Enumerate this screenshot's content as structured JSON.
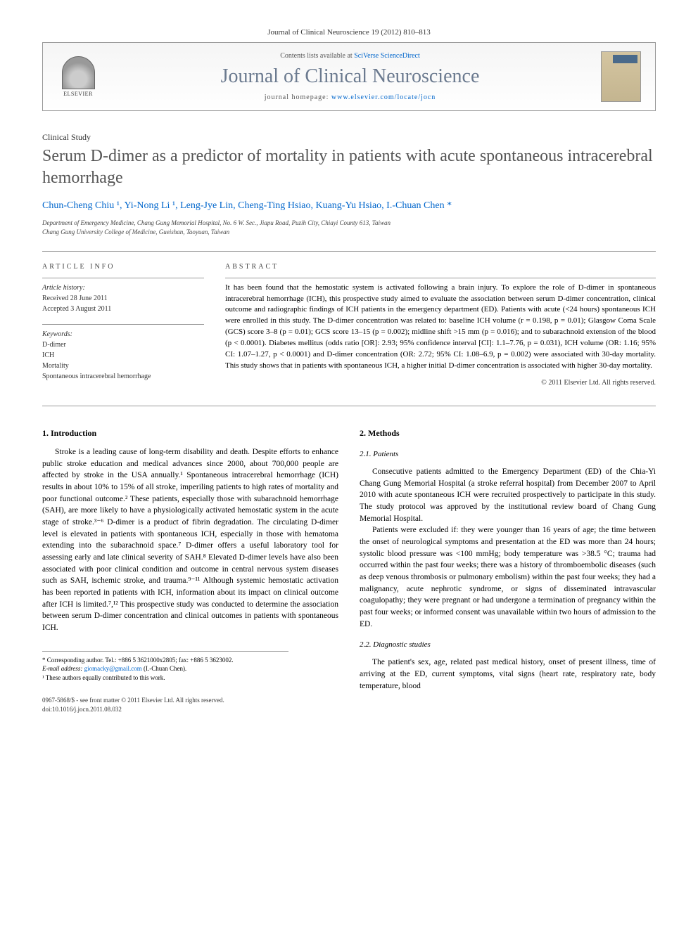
{
  "journal_ref": "Journal of Clinical Neuroscience 19 (2012) 810–813",
  "header": {
    "contents_text": "Contents lists available at ",
    "sciverse": "SciVerse ScienceDirect",
    "journal_title": "Journal of Clinical Neuroscience",
    "homepage_label": "journal homepage: ",
    "homepage_url": "www.elsevier.com/locate/jocn",
    "elsevier": "ELSEVIER"
  },
  "article": {
    "type": "Clinical Study",
    "title": "Serum D-dimer as a predictor of mortality in patients with acute spontaneous intracerebral hemorrhage",
    "authors_html": "Chun-Cheng Chiu ¹, Yi-Nong Li ¹, Leng-Jye Lin, Cheng-Ting Hsiao, Kuang-Yu Hsiao, I.-Chuan Chen *",
    "affiliation1": "Department of Emergency Medicine, Chang Gung Memorial Hospital, No. 6 W. Sec., Jiapu Road, Puzih City, Chiayi County 613, Taiwan",
    "affiliation2": "Chang Gung University College of Medicine, Gueishan, Taoyuan, Taiwan"
  },
  "info": {
    "heading": "ARTICLE INFO",
    "history_label": "Article history:",
    "received": "Received 28 June 2011",
    "accepted": "Accepted 3 August 2011",
    "keywords_label": "Keywords:",
    "keywords": [
      "D-dimer",
      "ICH",
      "Mortality",
      "Spontaneous intracerebral hemorrhage"
    ]
  },
  "abstract": {
    "heading": "ABSTRACT",
    "text": "It has been found that the hemostatic system is activated following a brain injury. To explore the role of D-dimer in spontaneous intracerebral hemorrhage (ICH), this prospective study aimed to evaluate the association between serum D-dimer concentration, clinical outcome and radiographic findings of ICH patients in the emergency department (ED). Patients with acute (<24 hours) spontaneous ICH were enrolled in this study. The D-dimer concentration was related to: baseline ICH volume (r = 0.198, p = 0.01); Glasgow Coma Scale (GCS) score 3–8 (p = 0.01); GCS score 13–15 (p = 0.002); midline shift >15 mm (p = 0.016); and to subarachnoid extension of the blood (p < 0.0001). Diabetes mellitus (odds ratio [OR]: 2.93; 95% confidence interval [CI]: 1.1–7.76, p = 0.031), ICH volume (OR: 1.16; 95% CI: 1.07–1.27, p < 0.0001) and D-dimer concentration (OR: 2.72; 95% CI: 1.08–6.9, p = 0.002) were associated with 30-day mortality. This study shows that in patients with spontaneous ICH, a higher initial D-dimer concentration is associated with higher 30-day mortality.",
    "copyright": "© 2011 Elsevier Ltd. All rights reserved."
  },
  "sections": {
    "intro_heading": "1. Introduction",
    "intro_text": "Stroke is a leading cause of long-term disability and death. Despite efforts to enhance public stroke education and medical advances since 2000, about 700,000 people are affected by stroke in the USA annually.¹ Spontaneous intracerebral hemorrhage (ICH) results in about 10% to 15% of all stroke, imperiling patients to high rates of mortality and poor functional outcome.² These patients, especially those with subarachnoid hemorrhage (SAH), are more likely to have a physiologically activated hemostatic system in the acute stage of stroke.³⁻⁶ D-dimer is a product of fibrin degradation. The circulating D-dimer level is elevated in patients with spontaneous ICH, especially in those with hematoma extending into the subarachnoid space.⁷ D-dimer offers a useful laboratory tool for assessing early and late clinical severity of SAH.⁸ Elevated D-dimer levels have also been associated with poor clinical condition and outcome in central nervous system diseases such as SAH, ischemic stroke, and trauma.⁹⁻¹¹ Although systemic hemostatic activation has been reported in patients with ICH, information about its impact on clinical outcome after ICH is limited.⁷,¹² This prospective study was conducted to determine the association between serum D-dimer concentration and clinical outcomes in patients with spontaneous ICH.",
    "methods_heading": "2. Methods",
    "patients_heading": "2.1. Patients",
    "patients_p1": "Consecutive patients admitted to the Emergency Department (ED) of the Chia-Yi Chang Gung Memorial Hospital (a stroke referral hospital) from December 2007 to April 2010 with acute spontaneous ICH were recruited prospectively to participate in this study. The study protocol was approved by the institutional review board of Chang Gung Memorial Hospital.",
    "patients_p2": "Patients were excluded if: they were younger than 16 years of age; the time between the onset of neurological symptoms and presentation at the ED was more than 24 hours; systolic blood pressure was <100 mmHg; body temperature was >38.5 °C; trauma had occurred within the past four weeks; there was a history of thromboembolic diseases (such as deep venous thrombosis or pulmonary embolism) within the past four weeks; they had a malignancy, acute nephrotic syndrome, or signs of disseminated intravascular coagulopathy; they were pregnant or had undergone a termination of pregnancy within the past four weeks; or informed consent was unavailable within two hours of admission to the ED.",
    "diagnostic_heading": "2.2. Diagnostic studies",
    "diagnostic_p1": "The patient's sex, age, related past medical history, onset of present illness, time of arriving at the ED, current symptoms, vital signs (heart rate, respiratory rate, body temperature, blood"
  },
  "footnotes": {
    "corresponding": "* Corresponding author. Tel.: +886 5 3621000x2805; fax: +886 5 3623002.",
    "email_label": "E-mail address: ",
    "email": "giomacky@gmail.com",
    "email_name": " (I.-Chuan Chen).",
    "equal": "¹ These authors equally contributed to this work."
  },
  "footer": {
    "issn": "0967-5868/$ - see front matter © 2011 Elsevier Ltd. All rights reserved.",
    "doi": "doi:10.1016/j.jocn.2011.08.032"
  },
  "colors": {
    "title_gray": "#6b7a8f",
    "link_blue": "#0066cc",
    "text": "#000000",
    "border": "#999999"
  }
}
